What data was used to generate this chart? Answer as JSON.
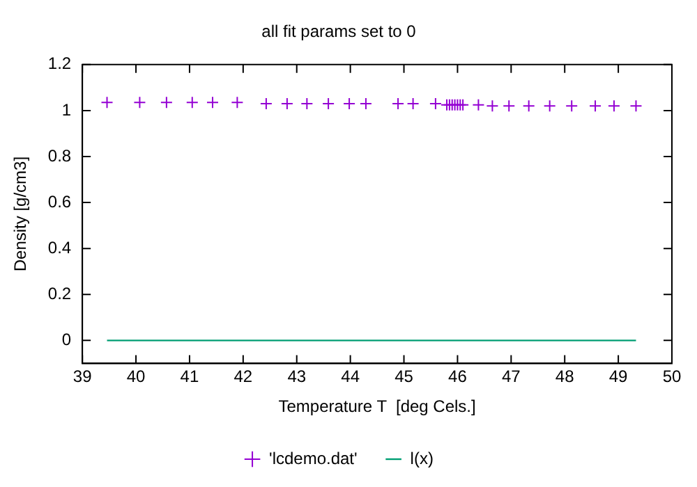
{
  "chart_data": {
    "type": "scatter",
    "title": "all fit params set to 0",
    "xlabel": "Temperature T  [deg Cels.]",
    "ylabel": "Density [g/cm3]",
    "xlim": [
      39,
      50
    ],
    "xticks": [
      39,
      40,
      41,
      42,
      43,
      44,
      45,
      46,
      47,
      48,
      49,
      50
    ],
    "ylim": [
      -0.1,
      1.2
    ],
    "yticks": [
      0,
      0.2,
      0.4,
      0.6,
      0.8,
      1,
      1.2
    ],
    "grid": false,
    "legend": "bottom",
    "series": [
      {
        "name": "'lcdemo.dat'",
        "marker": "cross",
        "color": "#9400d3",
        "x": [
          39.46,
          40.07,
          40.57,
          41.05,
          41.43,
          41.89,
          42.43,
          42.82,
          43.19,
          43.59,
          43.98,
          44.29,
          44.89,
          45.17,
          45.59,
          45.8,
          45.85,
          45.9,
          45.95,
          46.0,
          46.05,
          46.1,
          46.39,
          46.65,
          46.96,
          47.33,
          47.72,
          48.13,
          48.57,
          48.92,
          49.33
        ],
        "values": [
          1.035,
          1.035,
          1.035,
          1.035,
          1.035,
          1.035,
          1.03,
          1.03,
          1.03,
          1.03,
          1.03,
          1.03,
          1.03,
          1.03,
          1.03,
          1.025,
          1.025,
          1.025,
          1.025,
          1.025,
          1.025,
          1.025,
          1.025,
          1.02,
          1.02,
          1.02,
          1.02,
          1.02,
          1.02,
          1.02,
          1.02
        ]
      },
      {
        "name": "l(x)",
        "type": "line",
        "color": "#009e73",
        "x": [
          39.46,
          49.33
        ],
        "values": [
          0,
          0
        ]
      }
    ]
  }
}
